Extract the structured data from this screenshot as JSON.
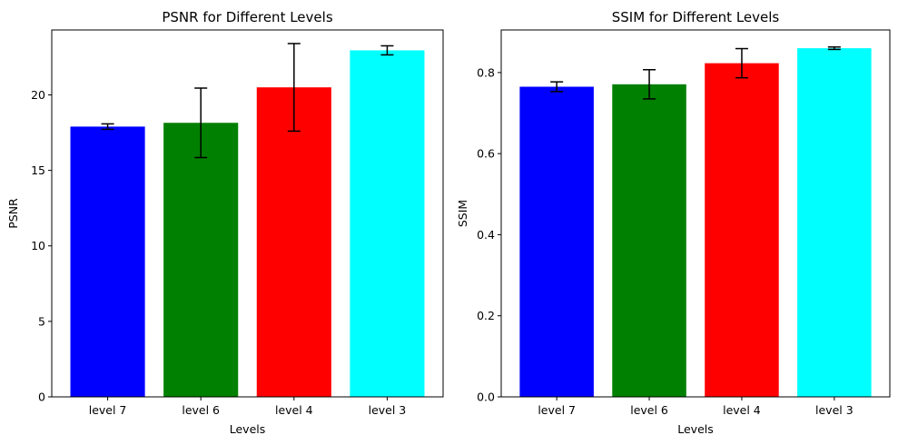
{
  "chart_data": [
    {
      "type": "bar",
      "title": "PSNR for Different Levels",
      "xlabel": "Levels",
      "ylabel": "PSNR",
      "categories": [
        "level 7",
        "level 6",
        "level 4",
        "level 3"
      ],
      "values": [
        17.9,
        18.15,
        20.5,
        22.95
      ],
      "errors": [
        0.18,
        2.3,
        2.9,
        0.3
      ],
      "colors": [
        "#0000ff",
        "#008000",
        "#ff0000",
        "#00ffff"
      ],
      "ylim": [
        0,
        24.3
      ],
      "yticks": [
        0,
        5,
        10,
        15,
        20
      ],
      "grid": false
    },
    {
      "type": "bar",
      "title": "SSIM for Different Levels",
      "xlabel": "Levels",
      "ylabel": "SSIM",
      "categories": [
        "level 7",
        "level 6",
        "level 4",
        "level 3"
      ],
      "values": [
        0.765,
        0.771,
        0.823,
        0.86
      ],
      "errors": [
        0.012,
        0.036,
        0.036,
        0.003
      ],
      "colors": [
        "#0000ff",
        "#008000",
        "#ff0000",
        "#00ffff"
      ],
      "ylim": [
        0,
        0.905
      ],
      "yticks": [
        0.0,
        0.2,
        0.4,
        0.6,
        0.8
      ],
      "grid": false
    }
  ]
}
